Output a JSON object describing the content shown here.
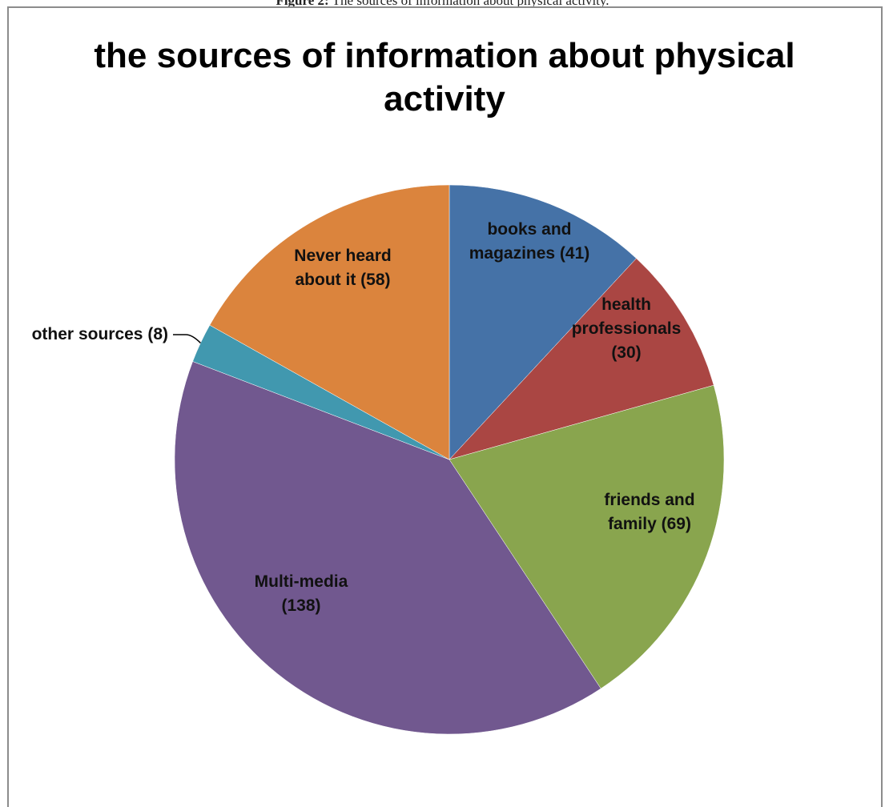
{
  "figure_caption": {
    "prefix": "Figure 2:",
    "text": "The sources of information about physical activity."
  },
  "chart_data": {
    "type": "pie",
    "title": "the sources of information about  physical activity",
    "title_lines": [
      "the sources of information about  physical",
      "activity"
    ],
    "start_angle_deg": 0,
    "direction": "clockwise",
    "slices": [
      {
        "name": "books and magazines",
        "value": 41,
        "color": "#4572a7",
        "label_lines": [
          "books and",
          "magazines (41)"
        ]
      },
      {
        "name": "health professionals",
        "value": 30,
        "color": "#aa4643",
        "label_lines": [
          "health",
          "professionals",
          "(30)"
        ]
      },
      {
        "name": "friends and family",
        "value": 69,
        "color": "#89a54e",
        "label_lines": [
          "friends and",
          "family (69)"
        ]
      },
      {
        "name": "Multi-media",
        "value": 138,
        "color": "#71588f",
        "label_lines": [
          "Multi-media",
          "(138)"
        ]
      },
      {
        "name": "other sources",
        "value": 8,
        "color": "#4198af",
        "label_lines": [
          "other sources (8)"
        ]
      },
      {
        "name": "Never heard about it",
        "value": 58,
        "color": "#db843d",
        "label_lines": [
          "Never heard",
          "about it (58)"
        ]
      }
    ]
  }
}
